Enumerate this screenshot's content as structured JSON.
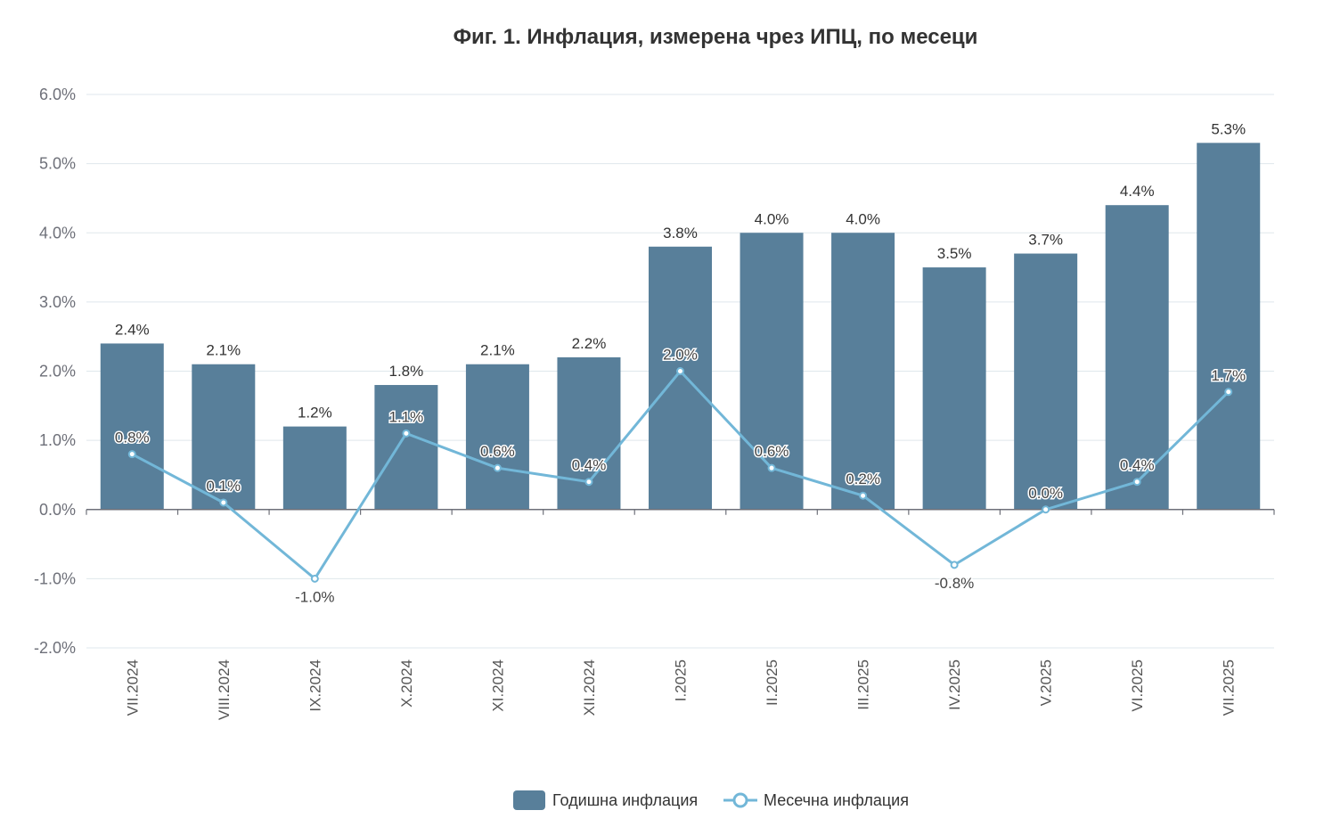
{
  "colors": {
    "bar": "#587f9a",
    "line": "#72b7d8",
    "grid": "#dfe7ec",
    "axis": "#6e7079"
  },
  "chart_data": {
    "type": "bar",
    "title": "Фиг. 1. Инфлация, измерена чрез ИПЦ, по месеци",
    "xlabel": "",
    "ylabel": "",
    "ylim": [
      -2.0,
      6.0
    ],
    "yticks": [
      "6.0%",
      "5.0%",
      "4.0%",
      "3.0%",
      "2.0%",
      "1.0%",
      "0.0%",
      "-1.0%",
      "-2.0%"
    ],
    "ytick_values": [
      6.0,
      5.0,
      4.0,
      3.0,
      2.0,
      1.0,
      0.0,
      -1.0,
      -2.0
    ],
    "categories": [
      "VII.2024",
      "VIII.2024",
      "IX.2024",
      "X.2024",
      "XI.2024",
      "XII.2024",
      "I.2025",
      "II.2025",
      "III.2025",
      "IV.2025",
      "V.2025",
      "VI.2025",
      "VII.2025"
    ],
    "grid": true,
    "legend_position": "bottom-center",
    "series": [
      {
        "name": "Годишна инфлация",
        "type": "bar",
        "values": [
          2.4,
          2.1,
          1.2,
          1.8,
          2.1,
          2.2,
          3.8,
          4.0,
          4.0,
          3.5,
          3.7,
          4.4,
          5.3
        ],
        "labels": [
          "2.4%",
          "2.1%",
          "1.2%",
          "1.8%",
          "2.1%",
          "2.2%",
          "3.8%",
          "4.0%",
          "4.0%",
          "3.5%",
          "3.7%",
          "4.4%",
          "5.3%"
        ]
      },
      {
        "name": "Месечна инфлация",
        "type": "line",
        "values": [
          0.8,
          0.1,
          -1.0,
          1.1,
          0.6,
          0.4,
          2.0,
          0.6,
          0.2,
          -0.8,
          0.0,
          0.4,
          1.7
        ],
        "labels": [
          "0.8%",
          "0.1%",
          "-1.0%",
          "1.1%",
          "0.6%",
          "0.4%",
          "2.0%",
          "0.6%",
          "0.2%",
          "-0.8%",
          "0.0%",
          "0.4%",
          "1.7%"
        ]
      }
    ]
  }
}
